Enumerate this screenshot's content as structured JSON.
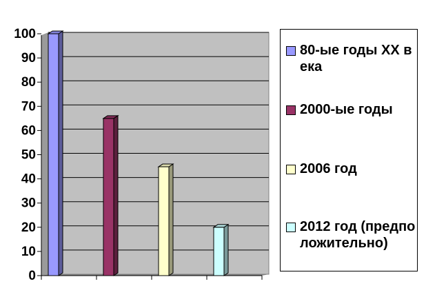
{
  "chart_data": {
    "type": "bar",
    "categories": [
      "80-ые годы XX века",
      "2000-ые годы",
      "2006 год",
      "2012 год (предположительно)"
    ],
    "values": [
      100,
      65,
      45,
      20
    ],
    "ylim": [
      0,
      100
    ],
    "yticks": [
      "0",
      "10",
      "20",
      "30",
      "40",
      "50",
      "60",
      "70",
      "80",
      "90",
      "100"
    ],
    "grid": true,
    "legend_placement": "right",
    "plot_background": "#c0c0c0",
    "colors": [
      "#9999ff",
      "#993366",
      "#ffffcc",
      "#ccffff"
    ],
    "legend": [
      {
        "label": "80-ые годы XX века",
        "color": "#9999ff"
      },
      {
        "label": "2000-ые годы",
        "color": "#993366"
      },
      {
        "label": "2006 год",
        "color": "#ffffcc"
      },
      {
        "label": "2012 год (предположительно)",
        "color": "#ccffff"
      }
    ]
  }
}
